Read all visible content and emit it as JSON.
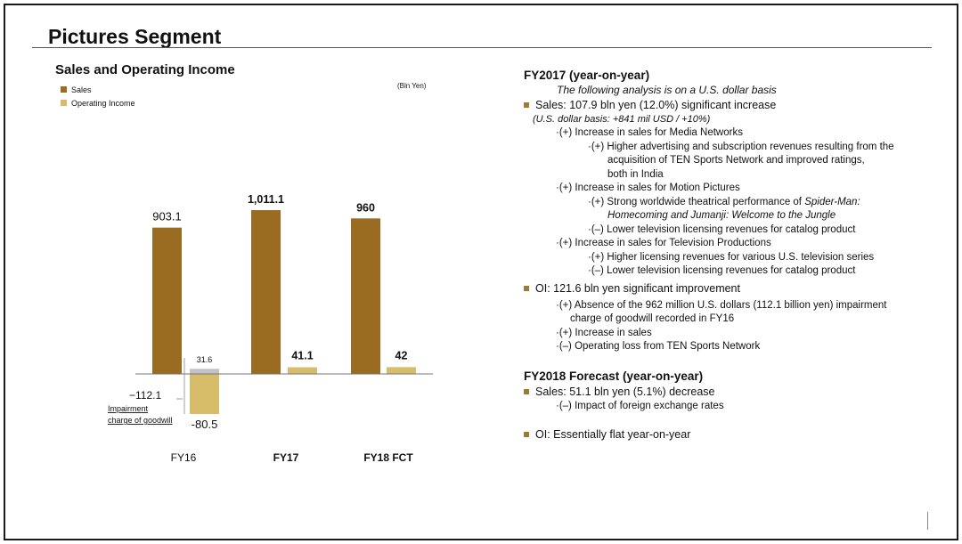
{
  "page": {
    "title": "Pictures Segment"
  },
  "colors": {
    "sales": "#9a6c22",
    "operating_income": "#d7bd6a",
    "grey_bar": "#c2c2c2",
    "bullet": "#a07a33"
  },
  "chart_data": {
    "type": "bar",
    "title": "Sales and Operating Income",
    "unit_label": "(Bln Yen)",
    "legend": [
      "Sales",
      "Operating Income"
    ],
    "categories": [
      "FY16",
      "FY17",
      "FY18 FCT"
    ],
    "category_bold": [
      false,
      true,
      true
    ],
    "series": [
      {
        "name": "Sales",
        "values": [
          903.1,
          1011.1,
          960
        ],
        "labels": [
          "903.1",
          "1,011.1",
          "960"
        ]
      },
      {
        "name": "Operating Income",
        "values": [
          -80.5,
          41.1,
          42
        ],
        "labels": [
          "-80.5",
          "41.1",
          "42"
        ]
      }
    ],
    "fy16_oi_excluding_impairment": {
      "value": 31.6,
      "label": "31.6"
    },
    "annotation": {
      "value": -112.1,
      "label": "−112.1",
      "text_line1": "Impairment",
      "text_line2": "charge of goodwill"
    }
  },
  "analysis": {
    "fy2017_heading": "FY2017 (year-on-year)",
    "usd_note": "The following analysis is on a U.S. dollar basis",
    "sales_bullet": "Sales: 107.9 bln yen (12.0%) significant increase",
    "sales_usd": "(U.S. dollar basis: +841 mil USD / +10%)",
    "media_networks": "·(+) Increase in sales for Media Networks",
    "media_detail_1": "·(+) Higher advertising and subscription revenues resulting from the",
    "media_detail_2": "acquisition of TEN Sports Network and improved ratings,",
    "media_detail_3": "both in India",
    "motion_pictures": "·(+) Increase in sales for Motion Pictures",
    "motion_detail_1a": "·(+) Strong worldwide theatrical performance of ",
    "motion_detail_1b": "Spider-Man:",
    "motion_detail_2a": "Homecoming",
    "motion_detail_2b": " and ",
    "motion_detail_2c": "Jumanji: Welcome to the Jungle",
    "motion_detail_3": "·(–) Lower television licensing revenues for catalog product",
    "tv_productions": "·(+) Increase in sales for Television Productions",
    "tv_detail_1": "·(+) Higher licensing revenues for various U.S. television series",
    "tv_detail_2": "·(–) Lower television licensing revenues for catalog product",
    "oi_bullet": "OI: 121.6 bln yen significant improvement",
    "oi_detail_1": "·(+) Absence of the 962 million U.S. dollars (112.1 billion yen) impairment",
    "oi_detail_2": "charge of goodwill recorded in FY16",
    "oi_detail_3": "·(+) Increase in sales",
    "oi_detail_4": "·(–) Operating loss from TEN Sports Network",
    "fy2018_heading": "FY2018 Forecast (year-on-year)",
    "fc_sales_bullet": "Sales: 51.1 bln yen (5.1%) decrease",
    "fc_sales_detail": "·(–) Impact of foreign exchange rates",
    "fc_oi_bullet": "OI: Essentially flat year-on-year"
  }
}
